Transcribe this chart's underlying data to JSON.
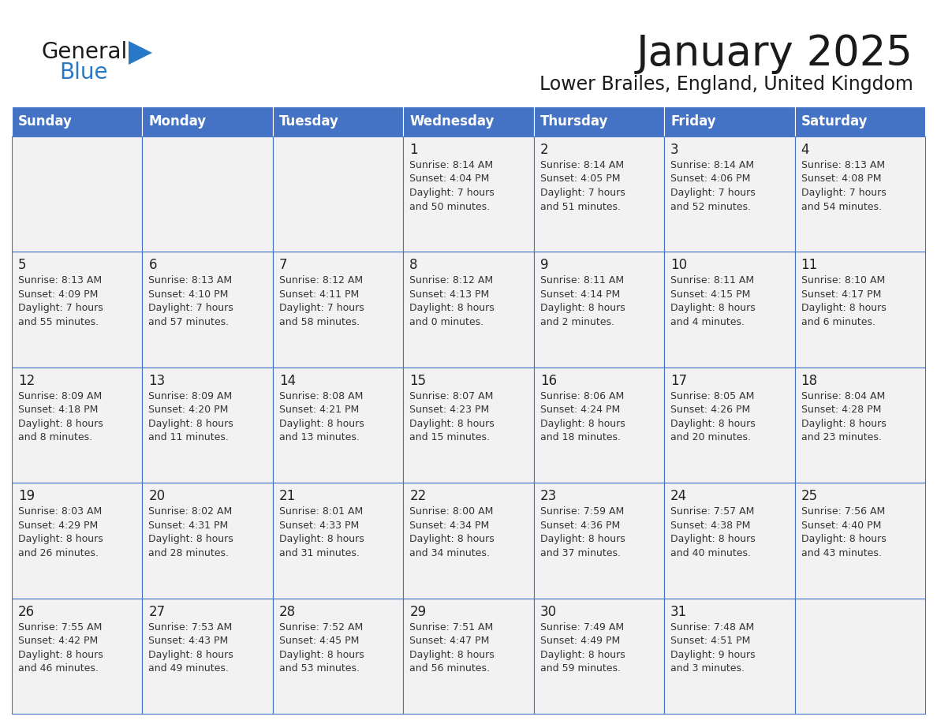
{
  "title": "January 2025",
  "subtitle": "Lower Brailes, England, United Kingdom",
  "header_bg": "#4472C4",
  "header_text_color": "#FFFFFF",
  "cell_bg": "#F2F2F2",
  "border_color": "#4472C4",
  "days_of_week": [
    "Sunday",
    "Monday",
    "Tuesday",
    "Wednesday",
    "Thursday",
    "Friday",
    "Saturday"
  ],
  "title_color": "#1a1a1a",
  "subtitle_color": "#1a1a1a",
  "day_num_color": "#222222",
  "cell_text_color": "#333333",
  "logo_text_color": "#1a1a1a",
  "logo_blue_color": "#2878C8",
  "calendar": [
    [
      {
        "day": "",
        "info": ""
      },
      {
        "day": "",
        "info": ""
      },
      {
        "day": "",
        "info": ""
      },
      {
        "day": "1",
        "info": "Sunrise: 8:14 AM\nSunset: 4:04 PM\nDaylight: 7 hours\nand 50 minutes."
      },
      {
        "day": "2",
        "info": "Sunrise: 8:14 AM\nSunset: 4:05 PM\nDaylight: 7 hours\nand 51 minutes."
      },
      {
        "day": "3",
        "info": "Sunrise: 8:14 AM\nSunset: 4:06 PM\nDaylight: 7 hours\nand 52 minutes."
      },
      {
        "day": "4",
        "info": "Sunrise: 8:13 AM\nSunset: 4:08 PM\nDaylight: 7 hours\nand 54 minutes."
      }
    ],
    [
      {
        "day": "5",
        "info": "Sunrise: 8:13 AM\nSunset: 4:09 PM\nDaylight: 7 hours\nand 55 minutes."
      },
      {
        "day": "6",
        "info": "Sunrise: 8:13 AM\nSunset: 4:10 PM\nDaylight: 7 hours\nand 57 minutes."
      },
      {
        "day": "7",
        "info": "Sunrise: 8:12 AM\nSunset: 4:11 PM\nDaylight: 7 hours\nand 58 minutes."
      },
      {
        "day": "8",
        "info": "Sunrise: 8:12 AM\nSunset: 4:13 PM\nDaylight: 8 hours\nand 0 minutes."
      },
      {
        "day": "9",
        "info": "Sunrise: 8:11 AM\nSunset: 4:14 PM\nDaylight: 8 hours\nand 2 minutes."
      },
      {
        "day": "10",
        "info": "Sunrise: 8:11 AM\nSunset: 4:15 PM\nDaylight: 8 hours\nand 4 minutes."
      },
      {
        "day": "11",
        "info": "Sunrise: 8:10 AM\nSunset: 4:17 PM\nDaylight: 8 hours\nand 6 minutes."
      }
    ],
    [
      {
        "day": "12",
        "info": "Sunrise: 8:09 AM\nSunset: 4:18 PM\nDaylight: 8 hours\nand 8 minutes."
      },
      {
        "day": "13",
        "info": "Sunrise: 8:09 AM\nSunset: 4:20 PM\nDaylight: 8 hours\nand 11 minutes."
      },
      {
        "day": "14",
        "info": "Sunrise: 8:08 AM\nSunset: 4:21 PM\nDaylight: 8 hours\nand 13 minutes."
      },
      {
        "day": "15",
        "info": "Sunrise: 8:07 AM\nSunset: 4:23 PM\nDaylight: 8 hours\nand 15 minutes."
      },
      {
        "day": "16",
        "info": "Sunrise: 8:06 AM\nSunset: 4:24 PM\nDaylight: 8 hours\nand 18 minutes."
      },
      {
        "day": "17",
        "info": "Sunrise: 8:05 AM\nSunset: 4:26 PM\nDaylight: 8 hours\nand 20 minutes."
      },
      {
        "day": "18",
        "info": "Sunrise: 8:04 AM\nSunset: 4:28 PM\nDaylight: 8 hours\nand 23 minutes."
      }
    ],
    [
      {
        "day": "19",
        "info": "Sunrise: 8:03 AM\nSunset: 4:29 PM\nDaylight: 8 hours\nand 26 minutes."
      },
      {
        "day": "20",
        "info": "Sunrise: 8:02 AM\nSunset: 4:31 PM\nDaylight: 8 hours\nand 28 minutes."
      },
      {
        "day": "21",
        "info": "Sunrise: 8:01 AM\nSunset: 4:33 PM\nDaylight: 8 hours\nand 31 minutes."
      },
      {
        "day": "22",
        "info": "Sunrise: 8:00 AM\nSunset: 4:34 PM\nDaylight: 8 hours\nand 34 minutes."
      },
      {
        "day": "23",
        "info": "Sunrise: 7:59 AM\nSunset: 4:36 PM\nDaylight: 8 hours\nand 37 minutes."
      },
      {
        "day": "24",
        "info": "Sunrise: 7:57 AM\nSunset: 4:38 PM\nDaylight: 8 hours\nand 40 minutes."
      },
      {
        "day": "25",
        "info": "Sunrise: 7:56 AM\nSunset: 4:40 PM\nDaylight: 8 hours\nand 43 minutes."
      }
    ],
    [
      {
        "day": "26",
        "info": "Sunrise: 7:55 AM\nSunset: 4:42 PM\nDaylight: 8 hours\nand 46 minutes."
      },
      {
        "day": "27",
        "info": "Sunrise: 7:53 AM\nSunset: 4:43 PM\nDaylight: 8 hours\nand 49 minutes."
      },
      {
        "day": "28",
        "info": "Sunrise: 7:52 AM\nSunset: 4:45 PM\nDaylight: 8 hours\nand 53 minutes."
      },
      {
        "day": "29",
        "info": "Sunrise: 7:51 AM\nSunset: 4:47 PM\nDaylight: 8 hours\nand 56 minutes."
      },
      {
        "day": "30",
        "info": "Sunrise: 7:49 AM\nSunset: 4:49 PM\nDaylight: 8 hours\nand 59 minutes."
      },
      {
        "day": "31",
        "info": "Sunrise: 7:48 AM\nSunset: 4:51 PM\nDaylight: 9 hours\nand 3 minutes."
      },
      {
        "day": "",
        "info": ""
      }
    ]
  ]
}
